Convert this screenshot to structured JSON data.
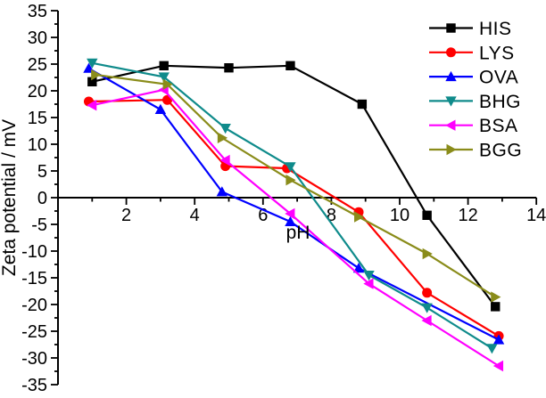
{
  "figure": {
    "background": "#ffffff",
    "axis_color": "#000000"
  },
  "chart_data": {
    "type": "line",
    "title": "",
    "xlabel": "pH",
    "ylabel": "Zeta potential / mV",
    "xlim": [
      0,
      14
    ],
    "ylim": [
      -35,
      35
    ],
    "x_major_ticks": [
      2,
      4,
      6,
      8,
      10,
      12,
      14
    ],
    "x_minor_ticks": [
      1,
      3,
      5,
      7,
      9,
      11,
      13
    ],
    "y_major_step": 5,
    "y_minor_step": 2.5,
    "y_tick_labels": [
      35,
      30,
      25,
      20,
      15,
      10,
      5,
      0,
      -5,
      -10,
      -15,
      -20,
      -25,
      -30,
      -35
    ],
    "grid": false,
    "legend_position": "top-right",
    "series": [
      {
        "name": "HIS",
        "color": "#000000",
        "marker": "square",
        "x": [
          1.0,
          3.1,
          5.0,
          6.8,
          8.9,
          10.8,
          12.8
        ],
        "y": [
          21.7,
          24.7,
          24.3,
          24.7,
          17.5,
          -3.3,
          -20.4
        ]
      },
      {
        "name": "LYS",
        "color": "#ff0000",
        "marker": "circle",
        "x": [
          0.9,
          3.2,
          4.9,
          6.7,
          8.8,
          10.8,
          12.9
        ],
        "y": [
          18.0,
          18.3,
          5.9,
          5.5,
          -2.7,
          -17.8,
          -25.9
        ]
      },
      {
        "name": "OVA",
        "color": "#0000ff",
        "marker": "triangle-up",
        "x": [
          0.9,
          3.0,
          4.8,
          6.8,
          8.8,
          12.9
        ],
        "y": [
          24.2,
          16.5,
          1.1,
          -4.5,
          -13.2,
          -26.6
        ]
      },
      {
        "name": "BHG",
        "color": "#0f8b8b",
        "marker": "triangle-down",
        "x": [
          1.0,
          3.1,
          4.9,
          6.8,
          9.1,
          10.8,
          12.7
        ],
        "y": [
          25.2,
          22.6,
          13.0,
          5.8,
          -14.5,
          -20.6,
          -28.2
        ]
      },
      {
        "name": "BSA",
        "color": "#ff00ff",
        "marker": "triangle-left",
        "x": [
          1.0,
          3.1,
          4.9,
          6.8,
          9.1,
          10.8,
          12.9
        ],
        "y": [
          17.3,
          20.2,
          7.0,
          -3.0,
          -16.1,
          -23.0,
          -31.5
        ]
      },
      {
        "name": "BGG",
        "color": "#8a8c1a",
        "marker": "triangle-right",
        "x": [
          1.1,
          3.2,
          4.8,
          6.8,
          8.8,
          10.8,
          12.8
        ],
        "y": [
          23.0,
          21.2,
          11.2,
          3.3,
          -3.6,
          -10.5,
          -18.6
        ]
      }
    ]
  }
}
